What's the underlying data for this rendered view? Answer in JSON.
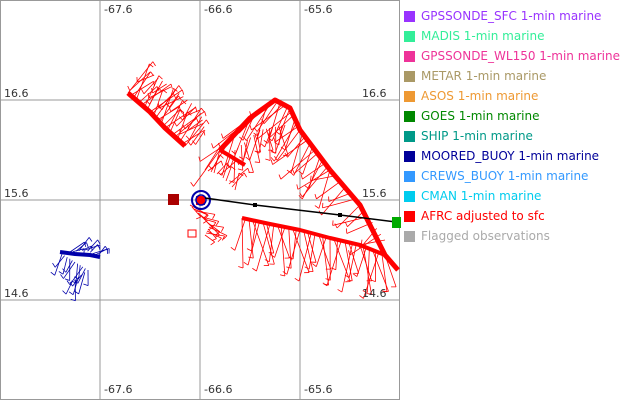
{
  "map": {
    "lon_labels_top": [
      "-67.6",
      "-66.6",
      "-65.6"
    ],
    "lon_labels_bottom": [
      "-67.6",
      "-66.6",
      "-65.6"
    ],
    "lat_labels_left": [
      "16.6",
      "15.6",
      "14.6"
    ],
    "lat_labels_right": [
      "16.6",
      "15.6",
      "14.6"
    ],
    "colors": {
      "grid": "#999999",
      "afrc": "#ff0000",
      "afrc_dark": "#aa0000",
      "moored_buoy": "#0000aa",
      "goes": "#00aa00",
      "track": "#000000"
    }
  },
  "legend": [
    {
      "label": "GPSSONDE_SFC 1-min marine",
      "color": "#9933ff"
    },
    {
      "label": "MADIS 1-min marine",
      "color": "#33ee99"
    },
    {
      "label": "GPSSONDE_WL150 1-min marine",
      "color": "#ee3399"
    },
    {
      "label": "METAR 1-min marine",
      "color": "#aa9966"
    },
    {
      "label": "ASOS 1-min marine",
      "color": "#ee9933"
    },
    {
      "label": "GOES 1-min marine",
      "color": "#008800"
    },
    {
      "label": "SHIP 1-min marine",
      "color": "#009988"
    },
    {
      "label": "MOORED_BUOY 1-min marine",
      "color": "#000099"
    },
    {
      "label": "CREWS_BUOY 1-min marine",
      "color": "#3399ff"
    },
    {
      "label": "CMAN 1-min marine",
      "color": "#00ccee"
    },
    {
      "label": "AFRC adjusted to sfc",
      "color": "#ff0000"
    },
    {
      "label": "Flagged observations",
      "color": "#aaaaaa"
    }
  ]
}
